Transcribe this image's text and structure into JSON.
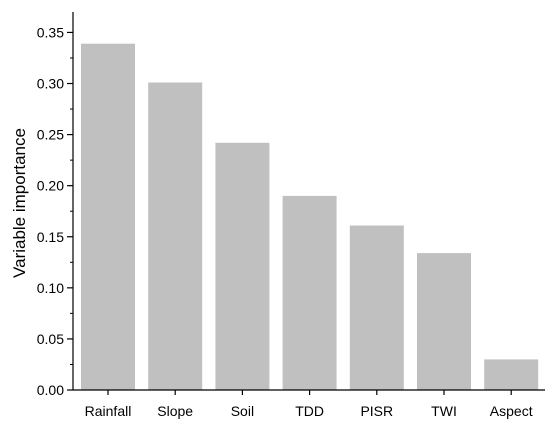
{
  "chart_data": {
    "type": "bar",
    "title": "",
    "xlabel": "",
    "ylabel": "Variable importance",
    "categories": [
      "Rainfall",
      "Slope",
      "Soil",
      "TDD",
      "PISR",
      "TWI",
      "Aspect"
    ],
    "values": [
      0.339,
      0.301,
      0.242,
      0.19,
      0.161,
      0.134,
      0.03
    ],
    "ylim": [
      0,
      0.37
    ],
    "yticks": [
      0.0,
      0.05,
      0.1,
      0.15,
      0.2,
      0.25,
      0.3,
      0.35
    ],
    "ytick_labels": [
      "0.00",
      "0.05",
      "0.10",
      "0.15",
      "0.20",
      "0.25",
      "0.30",
      "0.35"
    ],
    "grid": false,
    "colors": {
      "bar": "#c0c0c0",
      "axis": "#000000",
      "background": "#ffffff"
    }
  }
}
